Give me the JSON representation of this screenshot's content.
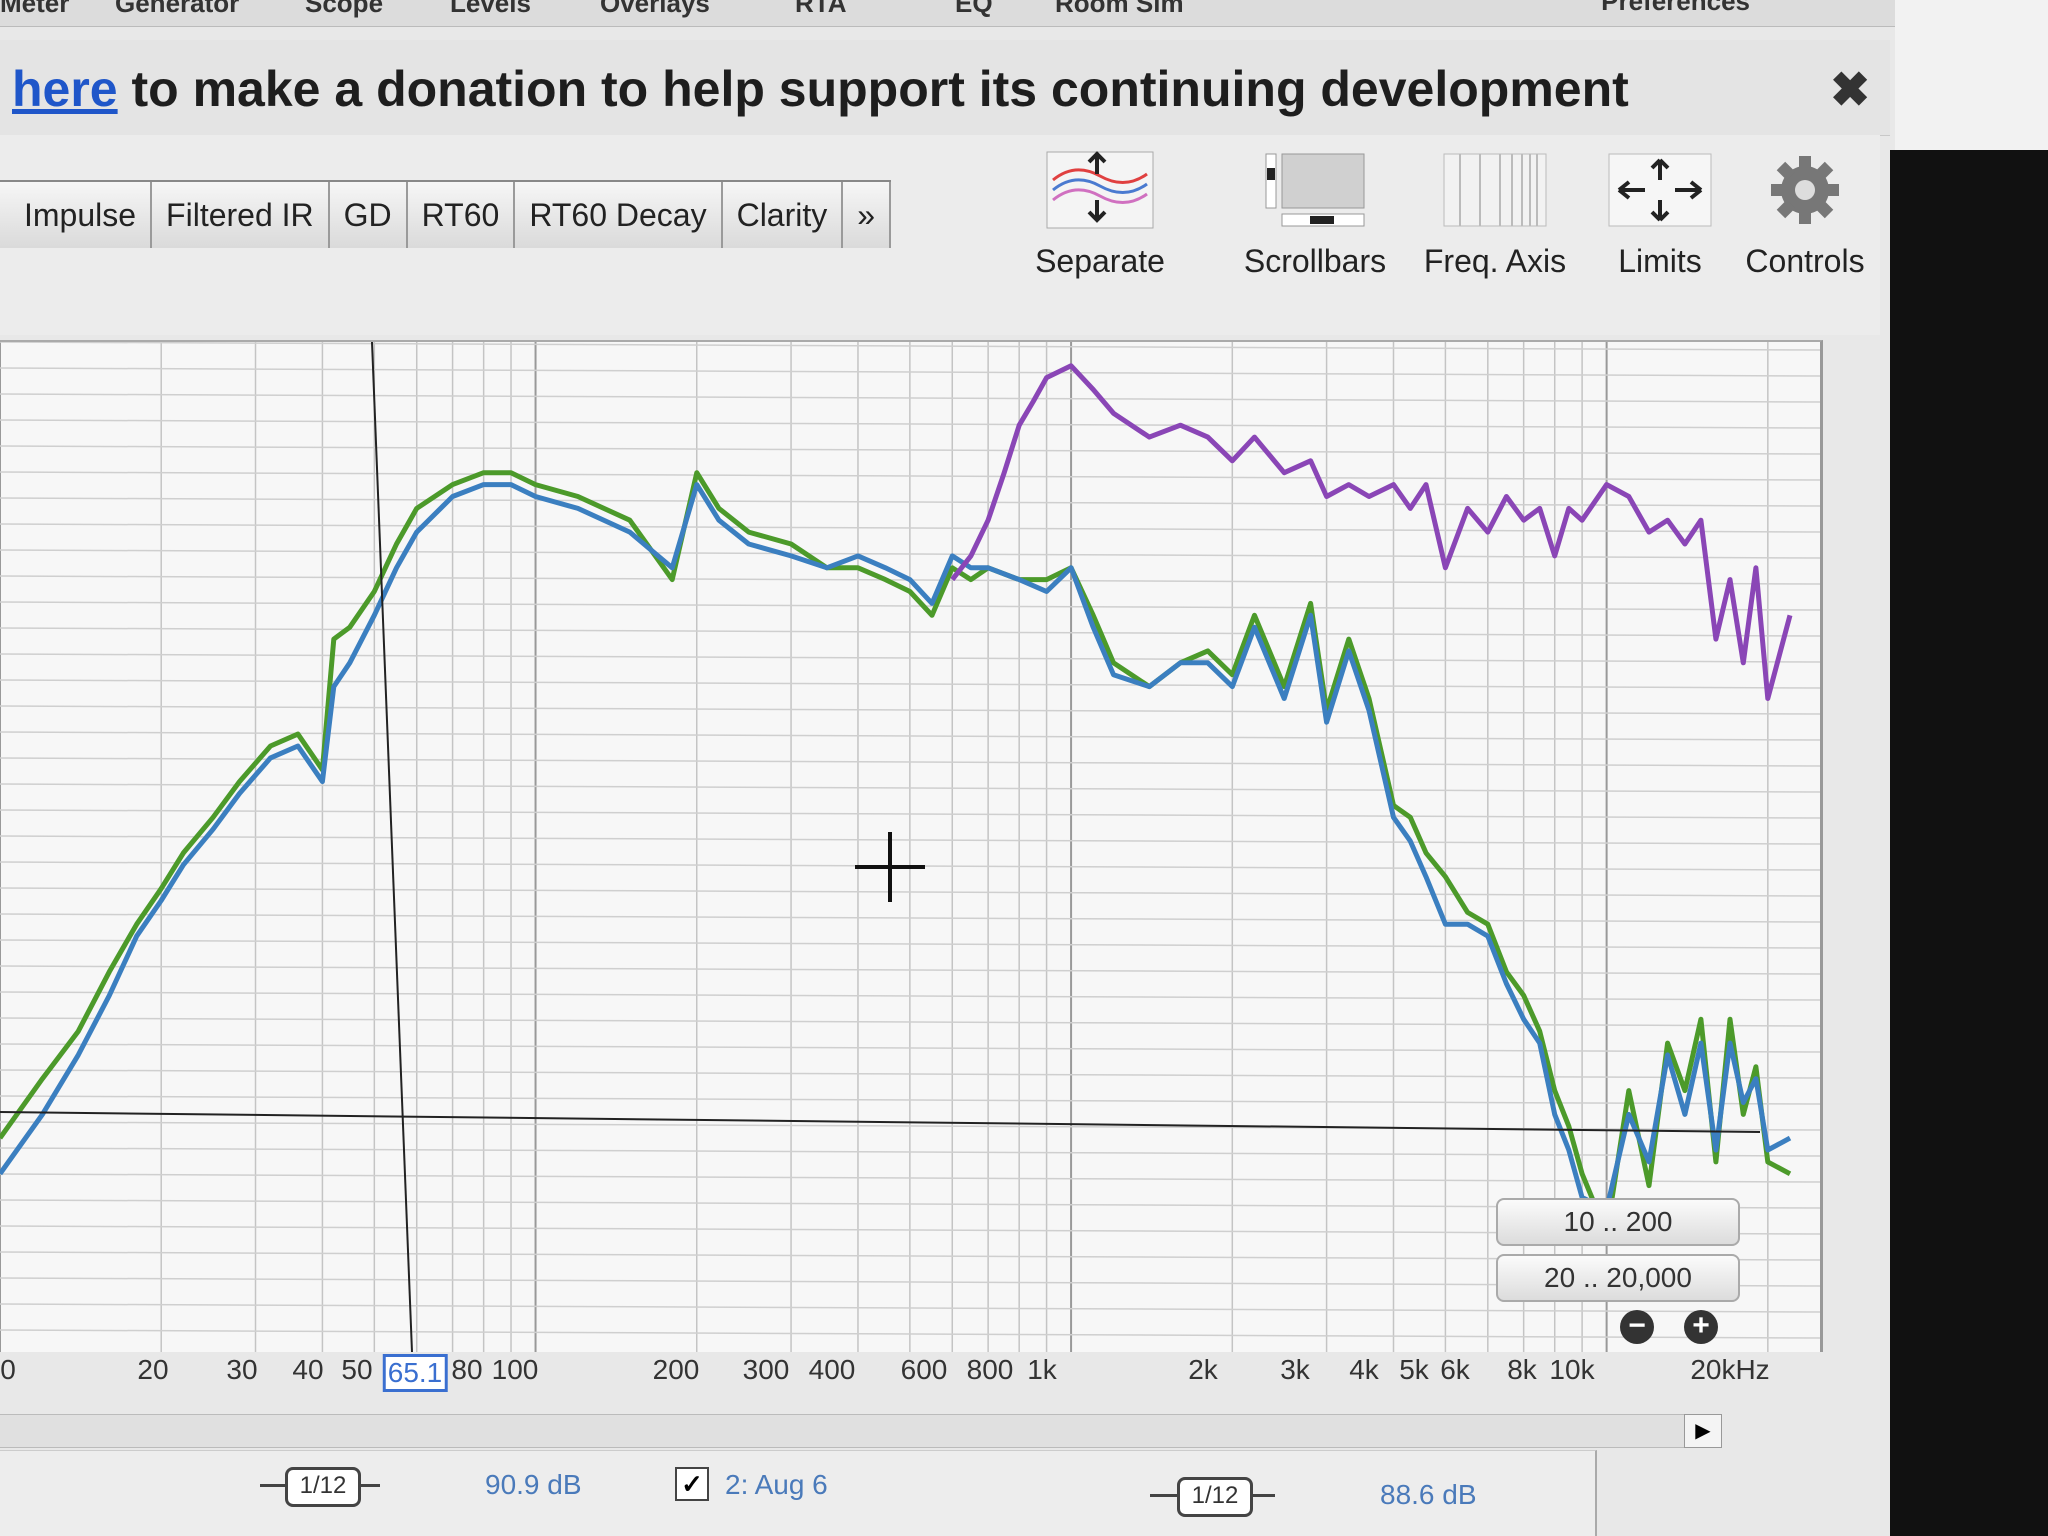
{
  "menu": {
    "items": [
      "Meter",
      "Generator",
      "Scope",
      "Levels",
      "Overlays",
      "RTA",
      "EQ",
      "Room Sim"
    ],
    "preferences": "Preferences"
  },
  "donation": {
    "link_text": "here",
    "message": " to make a donation to help support its continuing development",
    "close_icon": "close-icon"
  },
  "tabs": [
    "Impulse",
    "Filtered IR",
    "GD",
    "RT60",
    "RT60 Decay",
    "Clarity",
    "»"
  ],
  "tools": {
    "separate": "Separate",
    "scrollbars": "Scrollbars",
    "freq_axis": "Freq. Axis",
    "limits": "Limits",
    "controls": "Controls"
  },
  "range_buttons": [
    "10 .. 200",
    "20 .. 20,000"
  ],
  "freq_axis": {
    "labels": [
      "0",
      "20",
      "30",
      "40",
      "50",
      "80",
      "100",
      "200",
      "300",
      "400",
      "600",
      "800",
      "1k",
      "2k",
      "3k",
      "4k",
      "5k",
      "6k",
      "8k",
      "10k",
      "20kHz"
    ],
    "cursor_value": "65.1"
  },
  "bottom": {
    "smoothing_left": "1/12",
    "level_left": "90.9 dB",
    "measurement_name": "2: Aug 6",
    "checkbox_checked": "✓",
    "smoothing_right": "1/12",
    "level_right": "88.6 dB"
  },
  "chart_data": {
    "type": "line",
    "x_scale": "log",
    "xlim": [
      10,
      22000
    ],
    "title": "",
    "xlabel": "",
    "ylabel": "",
    "grid": true,
    "series": [
      {
        "color": "#4c9a2a",
        "x": [
          10,
          12,
          14,
          16,
          18,
          20,
          22,
          25,
          28,
          32,
          36,
          40,
          42,
          45,
          50,
          55,
          60,
          70,
          80,
          90,
          100,
          120,
          150,
          180,
          200,
          220,
          250,
          300,
          350,
          400,
          450,
          500,
          550,
          600,
          650,
          700,
          800,
          900,
          1000,
          1100,
          1200,
          1400,
          1600,
          1800,
          2000,
          2200,
          2500,
          2800,
          3000,
          3300,
          3600,
          4000,
          4300,
          4600,
          5000,
          5500,
          6000,
          6500,
          7000,
          7500,
          8000,
          8500,
          9000,
          10000,
          11000,
          12000,
          13000,
          14000,
          15000,
          16000,
          17000,
          18000,
          19000,
          20000,
          22000
        ],
        "values": [
          38,
          43,
          47,
          52,
          56,
          59,
          62,
          65,
          68,
          71,
          72,
          69,
          80,
          81,
          84,
          88,
          91,
          93,
          94,
          94,
          93,
          92,
          90,
          85,
          94,
          91,
          89,
          88,
          86,
          86,
          85,
          84,
          82,
          86,
          85,
          86,
          85,
          85,
          86,
          82,
          78,
          76,
          78,
          79,
          77,
          82,
          76,
          83,
          74,
          80,
          75,
          66,
          65,
          62,
          60,
          57,
          56,
          52,
          50,
          47,
          42,
          39,
          35,
          30,
          42,
          34,
          46,
          42,
          48,
          36,
          48,
          40,
          44,
          36,
          35
        ]
      },
      {
        "color": "#3b7fc0",
        "x": [
          10,
          12,
          14,
          16,
          18,
          20,
          22,
          25,
          28,
          32,
          36,
          40,
          42,
          45,
          50,
          55,
          60,
          70,
          80,
          90,
          100,
          120,
          150,
          180,
          200,
          220,
          250,
          300,
          350,
          400,
          450,
          500,
          550,
          600,
          650,
          700,
          800,
          900,
          1000,
          1100,
          1200,
          1400,
          1600,
          1800,
          2000,
          2200,
          2500,
          2800,
          3000,
          3300,
          3600,
          4000,
          4300,
          4600,
          5000,
          5500,
          6000,
          6500,
          7000,
          7500,
          8000,
          8500,
          9000,
          10000,
          11000,
          12000,
          13000,
          14000,
          15000,
          16000,
          17000,
          18000,
          19000,
          20000,
          22000
        ],
        "values": [
          35,
          40,
          45,
          50,
          55,
          58,
          61,
          64,
          67,
          70,
          71,
          68,
          76,
          78,
          82,
          86,
          89,
          92,
          93,
          93,
          92,
          91,
          89,
          86,
          93,
          90,
          88,
          87,
          86,
          87,
          86,
          85,
          83,
          87,
          86,
          86,
          85,
          84,
          86,
          81,
          77,
          76,
          78,
          78,
          76,
          81,
          75,
          82,
          73,
          79,
          74,
          65,
          63,
          60,
          56,
          56,
          55,
          51,
          48,
          46,
          40,
          37,
          33,
          32,
          40,
          36,
          45,
          40,
          46,
          37,
          46,
          41,
          43,
          37,
          38
        ]
      },
      {
        "color": "#8a46b6",
        "x": [
          600,
          650,
          700,
          750,
          800,
          850,
          900,
          1000,
          1100,
          1200,
          1400,
          1600,
          1800,
          2000,
          2200,
          2500,
          2800,
          3000,
          3300,
          3600,
          4000,
          4300,
          4600,
          5000,
          5500,
          6000,
          6500,
          7000,
          7500,
          8000,
          8500,
          9000,
          10000,
          11000,
          12000,
          13000,
          14000,
          15000,
          16000,
          17000,
          18000,
          19000,
          20000,
          22000
        ],
        "values": [
          85,
          87,
          90,
          94,
          98,
          100,
          102,
          103,
          101,
          99,
          97,
          98,
          97,
          95,
          97,
          94,
          95,
          92,
          93,
          92,
          93,
          91,
          93,
          86,
          91,
          89,
          92,
          90,
          91,
          87,
          91,
          90,
          93,
          92,
          89,
          90,
          88,
          90,
          80,
          85,
          78,
          86,
          75,
          82
        ]
      }
    ]
  }
}
